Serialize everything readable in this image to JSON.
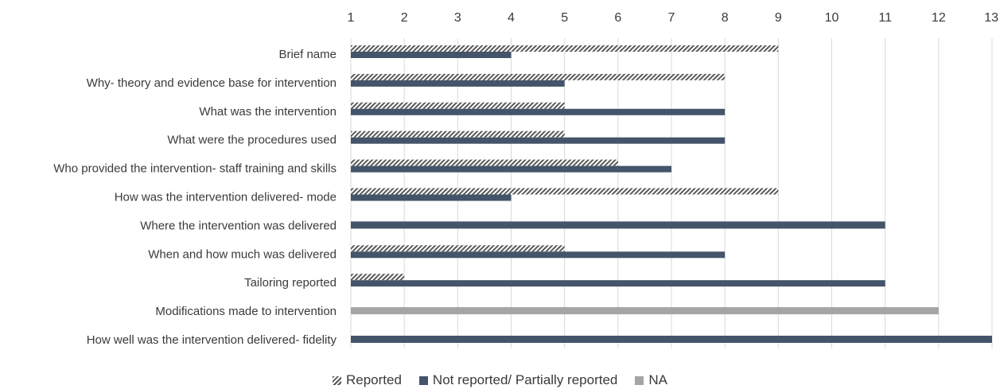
{
  "chart_data": {
    "type": "bar",
    "orientation": "horizontal",
    "title": "",
    "xlabel": "",
    "ylabel": "",
    "xlim": [
      1,
      13
    ],
    "xticks": [
      1,
      2,
      3,
      4,
      5,
      6,
      7,
      8,
      9,
      10,
      11,
      12,
      13
    ],
    "x_axis_position": "top",
    "grid": true,
    "legend_position": "bottom",
    "categories": [
      "Brief name",
      "Why- theory and evidence base for intervention",
      "What was the intervention",
      "What were the procedures used",
      "Who provided the intervention- staff training and skills",
      "How was the intervention delivered- mode",
      "Where the intervention was delivered",
      "When and how much was delivered",
      "Tailoring reported",
      "Modifications made to intervention",
      "How well was the intervention delivered- fidelity"
    ],
    "series": [
      {
        "name": "Reported",
        "color": "#666666",
        "pattern": "hatch",
        "values": [
          9,
          8,
          5,
          5,
          6,
          9,
          null,
          5,
          2,
          null,
          null
        ]
      },
      {
        "name": "Not reported/ Partially reported",
        "color": "#44546a",
        "values": [
          4,
          5,
          8,
          8,
          7,
          4,
          11,
          8,
          11,
          null,
          13
        ]
      },
      {
        "name": "NA",
        "color": "#a5a5a5",
        "values": [
          null,
          null,
          null,
          null,
          null,
          null,
          null,
          null,
          null,
          12,
          null
        ]
      }
    ]
  }
}
